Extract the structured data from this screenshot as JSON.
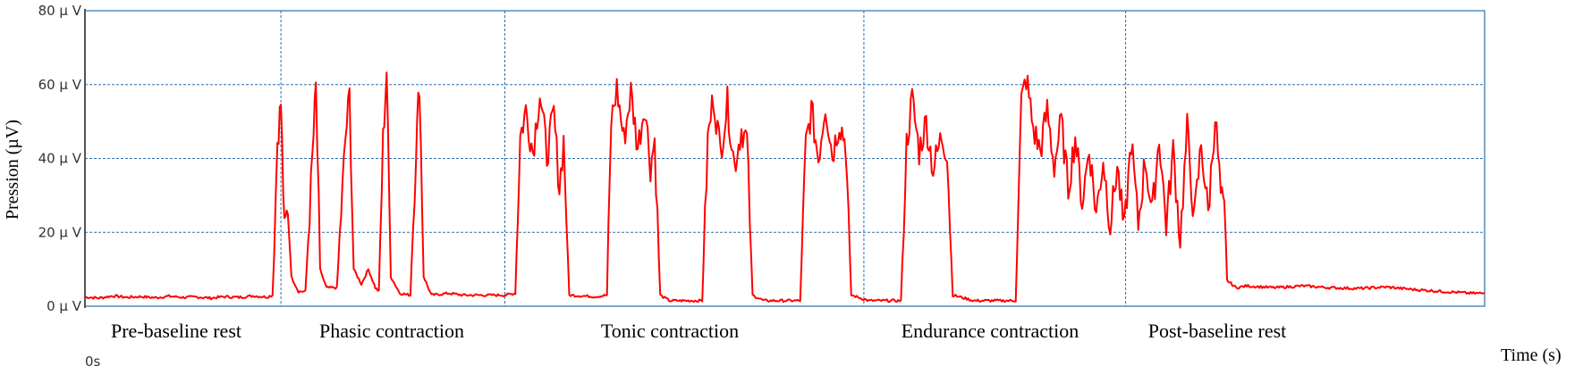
{
  "chart_data": {
    "type": "line",
    "ylabel": "Pression (µV)",
    "xlabel": "Time (s)",
    "x_start_label": "0s",
    "ylim": [
      0,
      80
    ],
    "y_ticks": [
      {
        "value": 0,
        "label": "0 µ V"
      },
      {
        "value": 20,
        "label": "20 µ V"
      },
      {
        "value": 40,
        "label": "40 µ V"
      },
      {
        "value": 60,
        "label": "60 µ V"
      },
      {
        "value": 80,
        "label": "80 µ V"
      }
    ],
    "grid": true,
    "line_color": "#ff0000",
    "grid_color": "#2e6fa7",
    "phases": [
      {
        "name": "Pre-baseline rest"
      },
      {
        "name": "Phasic contraction"
      },
      {
        "name": "Tonic contraction"
      },
      {
        "name": "Endurance contraction"
      },
      {
        "name": "Post-baseline rest"
      }
    ],
    "series": [
      {
        "values": [
          [
            0,
            2.5
          ],
          [
            2,
            2.2
          ],
          [
            4,
            2.8
          ],
          [
            6,
            2.4
          ],
          [
            8,
            2.6
          ],
          [
            10,
            2.3
          ],
          [
            12,
            2.7
          ],
          [
            14,
            2.4
          ],
          [
            16,
            2.5
          ],
          [
            18,
            2.2
          ],
          [
            20,
            2.6
          ],
          [
            22,
            2.4
          ],
          [
            24,
            2.8
          ],
          [
            26,
            2.5
          ],
          [
            26.8,
            3
          ],
          [
            27.5,
            45
          ],
          [
            28.0,
            55
          ],
          [
            28.5,
            20
          ],
          [
            29.0,
            27
          ],
          [
            29.5,
            8
          ],
          [
            30.5,
            4
          ],
          [
            31.5,
            4
          ],
          [
            32.5,
            40
          ],
          [
            33.0,
            59
          ],
          [
            33.6,
            10
          ],
          [
            34.5,
            5
          ],
          [
            36.0,
            5
          ],
          [
            37.2,
            45
          ],
          [
            37.8,
            57
          ],
          [
            38.4,
            10
          ],
          [
            39.5,
            6
          ],
          [
            40.5,
            10
          ],
          [
            41.5,
            5
          ],
          [
            42.0,
            4
          ],
          [
            42.6,
            45
          ],
          [
            43.1,
            64
          ],
          [
            43.7,
            8
          ],
          [
            45.0,
            3.5
          ],
          [
            46.5,
            3
          ],
          [
            47.3,
            42
          ],
          [
            47.8,
            61
          ],
          [
            48.4,
            8
          ],
          [
            49.5,
            3
          ],
          [
            52,
            3.5
          ],
          [
            54,
            3
          ],
          [
            60,
            3
          ],
          [
            61.5,
            3.5
          ],
          [
            62.2,
            46
          ],
          [
            63,
            53
          ],
          [
            64,
            42
          ],
          [
            65,
            58
          ],
          [
            66,
            41
          ],
          [
            67,
            52
          ],
          [
            67.8,
            32
          ],
          [
            68.4,
            45
          ],
          [
            69.2,
            3
          ],
          [
            71,
            2.8
          ],
          [
            73,
            2.6
          ],
          [
            74.6,
            3
          ],
          [
            75.2,
            50
          ],
          [
            76,
            59
          ],
          [
            77,
            45
          ],
          [
            78,
            58
          ],
          [
            79,
            43
          ],
          [
            80,
            55
          ],
          [
            80.8,
            38
          ],
          [
            81.4,
            45
          ],
          [
            82.2,
            3
          ],
          [
            83.5,
            1.5
          ],
          [
            86,
            1.5
          ],
          [
            88.2,
            1.5
          ],
          [
            89.0,
            45
          ],
          [
            89.8,
            57
          ],
          [
            90.8,
            42
          ],
          [
            91.8,
            55
          ],
          [
            92.8,
            38
          ],
          [
            93.8,
            48
          ],
          [
            94.6,
            45
          ],
          [
            95.4,
            3
          ],
          [
            97,
            1.5
          ],
          [
            100,
            1.5
          ],
          [
            102.2,
            1.5
          ],
          [
            103.0,
            44
          ],
          [
            103.8,
            53
          ],
          [
            104.8,
            40
          ],
          [
            105.8,
            55
          ],
          [
            106.8,
            41
          ],
          [
            107.8,
            50
          ],
          [
            108.7,
            44
          ],
          [
            109.5,
            3
          ],
          [
            112,
            1.5
          ],
          [
            115,
            1.5
          ],
          [
            116.6,
            1.5
          ],
          [
            117.4,
            44
          ],
          [
            118.2,
            56
          ],
          [
            119.2,
            42
          ],
          [
            120.2,
            50
          ],
          [
            121.2,
            37
          ],
          [
            122.4,
            46
          ],
          [
            123.2,
            42
          ],
          [
            124.0,
            3
          ],
          [
            127,
            1.5
          ],
          [
            130,
            1.5
          ],
          [
            133.0,
            1.5
          ],
          [
            133.8,
            55
          ],
          [
            134.5,
            62
          ],
          [
            135.5,
            48
          ],
          [
            136.5,
            42
          ],
          [
            137.5,
            53
          ],
          [
            138.5,
            38
          ],
          [
            139.5,
            50
          ],
          [
            140.5,
            32
          ],
          [
            141.5,
            46
          ],
          [
            142.5,
            28
          ],
          [
            143.5,
            43
          ],
          [
            144.5,
            25
          ],
          [
            145.5,
            40
          ],
          [
            146.5,
            22
          ],
          [
            147.5,
            38
          ],
          [
            148.5,
            20
          ],
          [
            149.5,
            45
          ],
          [
            150.5,
            22
          ],
          [
            151.5,
            40
          ],
          [
            152.5,
            25
          ],
          [
            153.5,
            46
          ],
          [
            154.5,
            22
          ],
          [
            155.5,
            42
          ],
          [
            156.5,
            18
          ],
          [
            157.5,
            48
          ],
          [
            158.5,
            23
          ],
          [
            159.5,
            44
          ],
          [
            160.5,
            25
          ],
          [
            161.5,
            52
          ],
          [
            162.3,
            30
          ],
          [
            162.8,
            25
          ],
          [
            163.2,
            7
          ],
          [
            164.5,
            5
          ],
          [
            166,
            5.5
          ],
          [
            170,
            5
          ],
          [
            174,
            5.5
          ],
          [
            178,
            5
          ],
          [
            182,
            4.8
          ],
          [
            186,
            5.2
          ],
          [
            190,
            4.5
          ],
          [
            194,
            4
          ],
          [
            198,
            3.5
          ],
          [
            200,
            3.5
          ]
        ]
      }
    ]
  }
}
